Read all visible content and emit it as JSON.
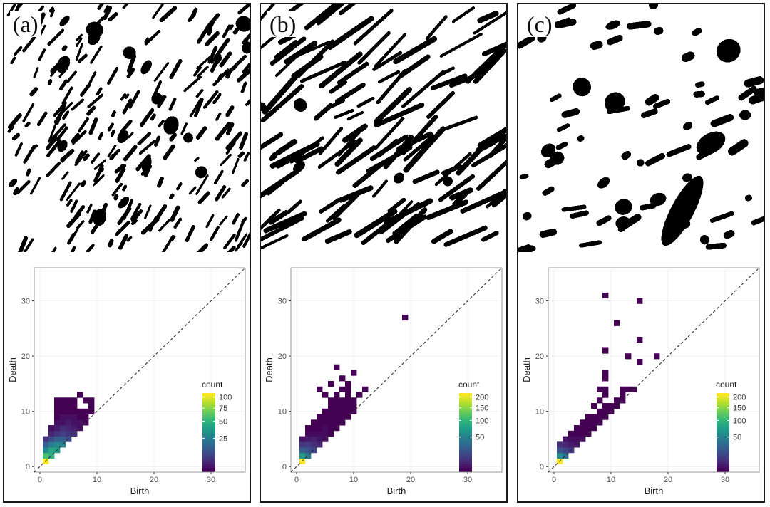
{
  "figure": {
    "panels": [
      {
        "letter": "(a)"
      },
      {
        "letter": "(b)"
      },
      {
        "letter": "(c)"
      }
    ]
  },
  "chart_data": [
    {
      "type": "heatmap",
      "title": "",
      "xlabel": "Birth",
      "ylabel": "Death",
      "xlim": [
        -1,
        36
      ],
      "ylim": [
        -1,
        36
      ],
      "xticks": [
        0,
        10,
        20,
        30
      ],
      "yticks": [
        0,
        10,
        20,
        30
      ],
      "diagonal": "dashed",
      "legend": {
        "title": "count",
        "ticks": [
          25,
          50,
          75,
          100
        ],
        "range": [
          1,
          110
        ],
        "position": "right"
      },
      "cells": [
        [
          1,
          1,
          110
        ],
        [
          1,
          2,
          60
        ],
        [
          2,
          2,
          50
        ],
        [
          1,
          3,
          30
        ],
        [
          2,
          3,
          45
        ],
        [
          3,
          3,
          40
        ],
        [
          1,
          4,
          15
        ],
        [
          2,
          4,
          25
        ],
        [
          3,
          4,
          30
        ],
        [
          4,
          4,
          25
        ],
        [
          1,
          5,
          6
        ],
        [
          2,
          5,
          10
        ],
        [
          3,
          5,
          15
        ],
        [
          4,
          5,
          15
        ],
        [
          5,
          5,
          10
        ],
        [
          2,
          6,
          4
        ],
        [
          3,
          6,
          6
        ],
        [
          4,
          6,
          8
        ],
        [
          5,
          6,
          6
        ],
        [
          6,
          6,
          5
        ],
        [
          2,
          7,
          2
        ],
        [
          3,
          7,
          3
        ],
        [
          4,
          7,
          5
        ],
        [
          5,
          7,
          4
        ],
        [
          6,
          7,
          3
        ],
        [
          7,
          7,
          2
        ],
        [
          3,
          8,
          2
        ],
        [
          4,
          8,
          2
        ],
        [
          5,
          8,
          3
        ],
        [
          6,
          8,
          2
        ],
        [
          7,
          8,
          2
        ],
        [
          8,
          8,
          1
        ],
        [
          3,
          9,
          1
        ],
        [
          4,
          9,
          2
        ],
        [
          5,
          9,
          2
        ],
        [
          6,
          9,
          2
        ],
        [
          7,
          9,
          1
        ],
        [
          8,
          9,
          1
        ],
        [
          3,
          10,
          1
        ],
        [
          4,
          10,
          1
        ],
        [
          5,
          10,
          1
        ],
        [
          6,
          10,
          1
        ],
        [
          7,
          10,
          1
        ],
        [
          8,
          10,
          1
        ],
        [
          9,
          10,
          1
        ],
        [
          3,
          11,
          1
        ],
        [
          4,
          11,
          1
        ],
        [
          5,
          11,
          1
        ],
        [
          6,
          11,
          1
        ],
        [
          9,
          11,
          1
        ],
        [
          3,
          12,
          1
        ],
        [
          4,
          12,
          1
        ],
        [
          5,
          12,
          1
        ],
        [
          6,
          12,
          1
        ],
        [
          8,
          12,
          1
        ],
        [
          9,
          12,
          1
        ],
        [
          7,
          13,
          1
        ]
      ]
    },
    {
      "type": "heatmap",
      "title": "",
      "xlabel": "Birth",
      "ylabel": "Death",
      "xlim": [
        -1,
        36
      ],
      "ylim": [
        -1,
        36
      ],
      "xticks": [
        0,
        10,
        20,
        30
      ],
      "yticks": [
        0,
        10,
        20,
        30
      ],
      "diagonal": "dashed",
      "legend": {
        "title": "count",
        "ticks": [
          50,
          100,
          150,
          200
        ],
        "range": [
          1,
          220
        ],
        "position": "right"
      },
      "cells": [
        [
          1,
          1,
          220
        ],
        [
          1,
          2,
          70
        ],
        [
          2,
          2,
          45
        ],
        [
          1,
          3,
          25
        ],
        [
          2,
          3,
          20
        ],
        [
          3,
          3,
          15
        ],
        [
          1,
          4,
          10
        ],
        [
          2,
          4,
          12
        ],
        [
          3,
          4,
          8
        ],
        [
          4,
          4,
          6
        ],
        [
          1,
          5,
          3
        ],
        [
          2,
          5,
          4
        ],
        [
          3,
          5,
          5
        ],
        [
          4,
          5,
          3
        ],
        [
          5,
          5,
          2
        ],
        [
          2,
          6,
          2
        ],
        [
          3,
          6,
          2
        ],
        [
          4,
          6,
          2
        ],
        [
          5,
          6,
          2
        ],
        [
          6,
          6,
          1
        ],
        [
          2,
          7,
          1
        ],
        [
          3,
          7,
          1
        ],
        [
          4,
          7,
          1
        ],
        [
          5,
          7,
          2
        ],
        [
          6,
          7,
          1
        ],
        [
          7,
          7,
          1
        ],
        [
          3,
          8,
          1
        ],
        [
          4,
          8,
          1
        ],
        [
          5,
          8,
          1
        ],
        [
          6,
          8,
          1
        ],
        [
          7,
          8,
          1
        ],
        [
          8,
          8,
          1
        ],
        [
          4,
          9,
          1
        ],
        [
          5,
          9,
          1
        ],
        [
          6,
          9,
          1
        ],
        [
          7,
          9,
          1
        ],
        [
          8,
          9,
          1
        ],
        [
          9,
          9,
          1
        ],
        [
          5,
          10,
          1
        ],
        [
          6,
          10,
          1
        ],
        [
          7,
          10,
          1
        ],
        [
          8,
          10,
          1
        ],
        [
          9,
          10,
          1
        ],
        [
          10,
          10,
          1
        ],
        [
          6,
          11,
          1
        ],
        [
          7,
          11,
          1
        ],
        [
          8,
          11,
          1
        ],
        [
          9,
          11,
          1
        ],
        [
          10,
          11,
          1
        ],
        [
          6,
          12,
          1
        ],
        [
          7,
          12,
          1
        ],
        [
          8,
          12,
          1
        ],
        [
          9,
          12,
          1
        ],
        [
          10,
          12,
          1
        ],
        [
          5,
          13,
          1
        ],
        [
          7,
          13,
          1
        ],
        [
          9,
          13,
          1
        ],
        [
          11,
          13,
          1
        ],
        [
          4,
          14,
          1
        ],
        [
          8,
          14,
          1
        ],
        [
          9,
          14,
          1
        ],
        [
          12,
          14,
          1
        ],
        [
          6,
          15,
          1
        ],
        [
          9,
          15,
          1
        ],
        [
          8,
          16,
          1
        ],
        [
          10,
          17,
          1
        ],
        [
          7,
          18,
          1
        ],
        [
          19,
          27,
          1
        ]
      ]
    },
    {
      "type": "heatmap",
      "title": "",
      "xlabel": "Birth",
      "ylabel": "Death",
      "xlim": [
        -1,
        36
      ],
      "ylim": [
        -1,
        36
      ],
      "xticks": [
        0,
        10,
        20,
        30
      ],
      "yticks": [
        0,
        10,
        20,
        30
      ],
      "diagonal": "dashed",
      "legend": {
        "title": "count",
        "ticks": [
          50,
          100,
          150,
          200
        ],
        "range": [
          1,
          220
        ],
        "position": "right"
      },
      "cells": [
        [
          1,
          1,
          220
        ],
        [
          1,
          2,
          60
        ],
        [
          2,
          2,
          40
        ],
        [
          1,
          3,
          20
        ],
        [
          2,
          3,
          15
        ],
        [
          3,
          3,
          10
        ],
        [
          1,
          4,
          8
        ],
        [
          2,
          4,
          6
        ],
        [
          3,
          4,
          4
        ],
        [
          4,
          4,
          3
        ],
        [
          2,
          5,
          3
        ],
        [
          3,
          5,
          2
        ],
        [
          4,
          5,
          2
        ],
        [
          5,
          5,
          2
        ],
        [
          3,
          6,
          1
        ],
        [
          4,
          6,
          1
        ],
        [
          5,
          6,
          1
        ],
        [
          6,
          6,
          1
        ],
        [
          4,
          7,
          1
        ],
        [
          5,
          7,
          1
        ],
        [
          6,
          7,
          1
        ],
        [
          7,
          7,
          1
        ],
        [
          5,
          8,
          1
        ],
        [
          6,
          8,
          1
        ],
        [
          7,
          8,
          1
        ],
        [
          8,
          8,
          1
        ],
        [
          6,
          9,
          1
        ],
        [
          7,
          9,
          1
        ],
        [
          8,
          9,
          1
        ],
        [
          9,
          9,
          1
        ],
        [
          8,
          10,
          1
        ],
        [
          9,
          10,
          1
        ],
        [
          10,
          10,
          1
        ],
        [
          7,
          11,
          1
        ],
        [
          9,
          11,
          1
        ],
        [
          10,
          11,
          1
        ],
        [
          11,
          11,
          1
        ],
        [
          8,
          12,
          1
        ],
        [
          11,
          12,
          1
        ],
        [
          12,
          12,
          1
        ],
        [
          9,
          13,
          1
        ],
        [
          12,
          13,
          1
        ],
        [
          8,
          14,
          1
        ],
        [
          9,
          14,
          1
        ],
        [
          12,
          14,
          1
        ],
        [
          13,
          14,
          1
        ],
        [
          14,
          14,
          1
        ],
        [
          9,
          16,
          1
        ],
        [
          9,
          17,
          1
        ],
        [
          15,
          19,
          1
        ],
        [
          13,
          20,
          1
        ],
        [
          18,
          20,
          1
        ],
        [
          9,
          21,
          1
        ],
        [
          15,
          23,
          1
        ],
        [
          11,
          26,
          1
        ],
        [
          15,
          30,
          1
        ],
        [
          9,
          31,
          1
        ]
      ]
    }
  ]
}
